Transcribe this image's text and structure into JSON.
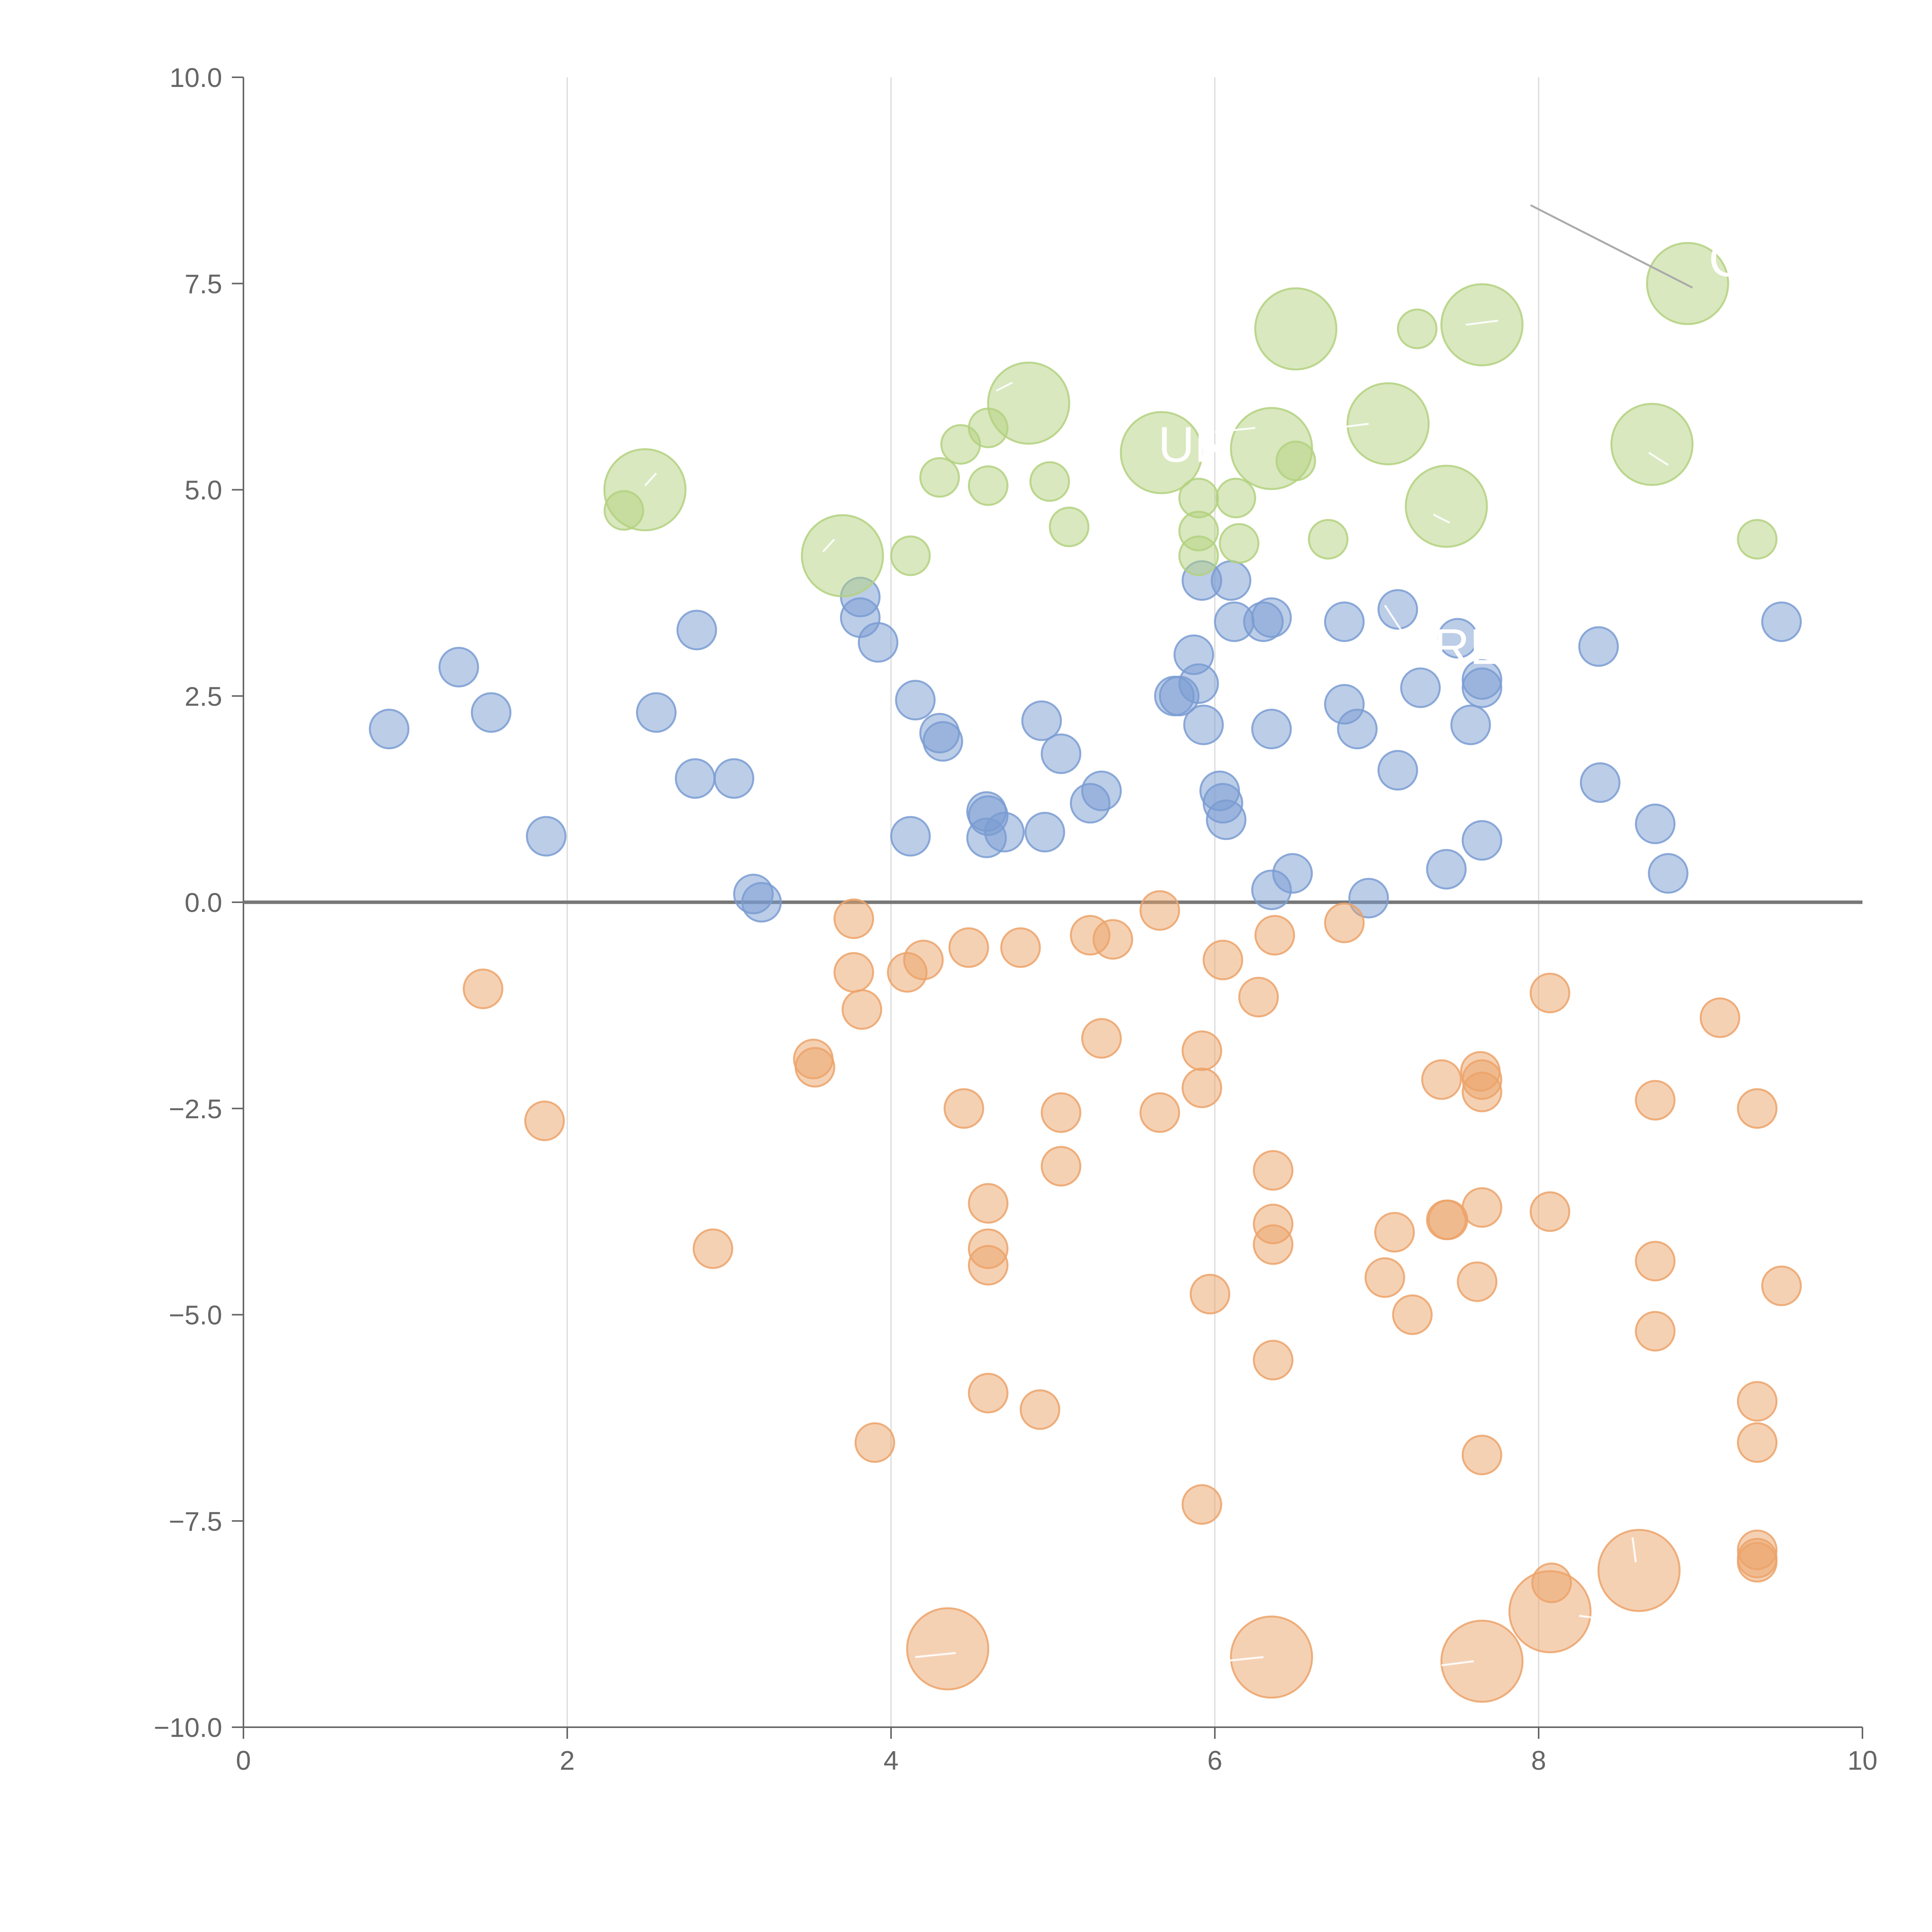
{
  "chart_data": {
    "type": "scatter",
    "title": "",
    "xlabel": "",
    "ylabel": "",
    "xlim": [
      0,
      10
    ],
    "ylim": [
      -10,
      10
    ],
    "grid": "vertical",
    "legend": "none",
    "x_ticks": [
      0,
      2,
      4,
      6,
      8,
      10
    ],
    "x_tick_labels": [
      "0",
      "2",
      "4",
      "6",
      "8",
      "10"
    ],
    "y_ticks": [
      10,
      7.5,
      5,
      2.5,
      0,
      -2.5,
      -5,
      -7.5,
      -10
    ],
    "y_tick_labels": [
      "10.0",
      "7.5",
      "5.0",
      "2.5",
      "0.0",
      "−2.5",
      "−5.0",
      "−7.5",
      "−10.0"
    ],
    "colors": {
      "blue": "#7a9cd2",
      "orange": "#eca36a",
      "green": "#b3d17f",
      "axis": "#666666",
      "grid": "#d9d9d9",
      "zero": "#777777"
    },
    "annotations": [
      {
        "text": "UN",
        "x": 5.65,
        "y": 5.55
      },
      {
        "text": "CI",
        "x": 9.05,
        "y": 7.8
      },
      {
        "text": "RE",
        "x": 7.35,
        "y": 3.1
      }
    ],
    "leader": {
      "x1": 7.95,
      "y1": 8.45,
      "x2": 8.95,
      "y2": 7.45
    },
    "series": [
      {
        "name": "blue",
        "color": "#7a9cd2",
        "points": [
          [
            0.9,
            2.1,
            1
          ],
          [
            1.33,
            2.85,
            1
          ],
          [
            1.53,
            2.3,
            1
          ],
          [
            1.87,
            0.8,
            1
          ],
          [
            2.55,
            2.3,
            1
          ],
          [
            2.8,
            3.3,
            1
          ],
          [
            2.79,
            1.5,
            1
          ],
          [
            3.03,
            1.5,
            1
          ],
          [
            3.15,
            0.1,
            1
          ],
          [
            3.2,
            0.0,
            1
          ],
          [
            3.81,
            3.7,
            1
          ],
          [
            3.81,
            3.45,
            1
          ],
          [
            3.92,
            3.15,
            1
          ],
          [
            4.15,
            2.45,
            1
          ],
          [
            4.12,
            0.8,
            1
          ],
          [
            4.3,
            2.05,
            1
          ],
          [
            4.32,
            1.95,
            1
          ],
          [
            4.59,
            1.1,
            1
          ],
          [
            4.6,
            1.05,
            1
          ],
          [
            4.59,
            0.78,
            1
          ],
          [
            4.7,
            0.85,
            1
          ],
          [
            4.93,
            2.2,
            1
          ],
          [
            4.95,
            0.85,
            1
          ],
          [
            5.05,
            1.8,
            1
          ],
          [
            5.23,
            1.2,
            1
          ],
          [
            5.3,
            1.35,
            1
          ],
          [
            5.75,
            2.5,
            1
          ],
          [
            5.78,
            2.5,
            1
          ],
          [
            5.87,
            3.0,
            1
          ],
          [
            5.9,
            2.65,
            1
          ],
          [
            5.92,
            3.9,
            1
          ],
          [
            5.93,
            2.15,
            1
          ],
          [
            6.03,
            1.35,
            1
          ],
          [
            6.05,
            1.2,
            1
          ],
          [
            6.07,
            1.0,
            1
          ],
          [
            6.1,
            3.9,
            1
          ],
          [
            6.12,
            3.4,
            1
          ],
          [
            6.3,
            3.4,
            1
          ],
          [
            6.35,
            3.45,
            1
          ],
          [
            6.35,
            2.1,
            1
          ],
          [
            6.35,
            0.15,
            1
          ],
          [
            6.48,
            0.35,
            1
          ],
          [
            6.8,
            3.4,
            1
          ],
          [
            6.8,
            2.4,
            1
          ],
          [
            6.88,
            2.1,
            1
          ],
          [
            6.95,
            0.05,
            1
          ],
          [
            7.13,
            3.55,
            1
          ],
          [
            7.13,
            1.6,
            1
          ],
          [
            7.27,
            2.6,
            1
          ],
          [
            7.43,
            0.4,
            1
          ],
          [
            7.5,
            3.2,
            1
          ],
          [
            7.58,
            2.15,
            1
          ],
          [
            7.65,
            2.7,
            1
          ],
          [
            7.65,
            2.6,
            1
          ],
          [
            7.65,
            0.75,
            1
          ],
          [
            8.37,
            3.1,
            1
          ],
          [
            8.38,
            1.45,
            1
          ],
          [
            8.72,
            0.95,
            1
          ],
          [
            8.8,
            0.35,
            1
          ],
          [
            9.5,
            3.4,
            1
          ]
        ]
      },
      {
        "name": "orange",
        "color": "#eca36a",
        "points": [
          [
            1.48,
            -1.05,
            1
          ],
          [
            1.86,
            -2.65,
            1
          ],
          [
            2.9,
            -4.2,
            1
          ],
          [
            3.52,
            -1.9,
            1
          ],
          [
            3.53,
            -2.0,
            1
          ],
          [
            3.77,
            -0.2,
            1
          ],
          [
            3.77,
            -0.85,
            1
          ],
          [
            3.82,
            -1.3,
            1
          ],
          [
            3.9,
            -6.55,
            1
          ],
          [
            4.1,
            -0.85,
            1
          ],
          [
            4.2,
            -0.7,
            1
          ],
          [
            4.45,
            -2.5,
            1
          ],
          [
            4.48,
            -0.55,
            1
          ],
          [
            4.6,
            -3.65,
            1
          ],
          [
            4.6,
            -4.2,
            1
          ],
          [
            4.6,
            -4.4,
            1
          ],
          [
            4.6,
            -5.95,
            1
          ],
          [
            4.8,
            -0.55,
            1
          ],
          [
            4.92,
            -6.15,
            1
          ],
          [
            5.05,
            -2.55,
            1
          ],
          [
            5.05,
            -3.2,
            1
          ],
          [
            5.23,
            -0.4,
            1
          ],
          [
            5.3,
            -1.65,
            1
          ],
          [
            5.37,
            -0.45,
            1
          ],
          [
            5.66,
            -0.1,
            1
          ],
          [
            5.66,
            -2.55,
            1
          ],
          [
            5.92,
            -1.8,
            1
          ],
          [
            5.92,
            -2.25,
            1
          ],
          [
            5.92,
            -7.3,
            1
          ],
          [
            5.97,
            -4.75,
            1
          ],
          [
            6.05,
            -0.7,
            1
          ],
          [
            6.27,
            -1.15,
            1
          ],
          [
            6.37,
            -0.4,
            1
          ],
          [
            6.36,
            -3.25,
            1
          ],
          [
            6.36,
            -3.9,
            1
          ],
          [
            6.36,
            -4.15,
            1
          ],
          [
            6.36,
            -5.55,
            1
          ],
          [
            6.8,
            -0.25,
            1
          ],
          [
            7.05,
            -4.55,
            1
          ],
          [
            7.11,
            -4.0,
            1
          ],
          [
            7.22,
            -5.0,
            1
          ],
          [
            7.4,
            -2.15,
            1
          ],
          [
            7.43,
            -3.85,
            1
          ],
          [
            7.44,
            -3.85,
            1
          ],
          [
            7.62,
            -4.6,
            1
          ],
          [
            7.64,
            -2.05,
            1
          ],
          [
            7.65,
            -2.15,
            1
          ],
          [
            7.65,
            -2.3,
            1
          ],
          [
            7.65,
            -3.7,
            1
          ],
          [
            7.65,
            -6.7,
            1
          ],
          [
            8.07,
            -1.1,
            1
          ],
          [
            8.07,
            -3.75,
            1
          ],
          [
            8.08,
            -8.25,
            1
          ],
          [
            8.72,
            -2.4,
            1
          ],
          [
            8.72,
            -4.35,
            1
          ],
          [
            8.72,
            -5.2,
            1
          ],
          [
            9.12,
            -1.4,
            1
          ],
          [
            9.35,
            -2.5,
            1
          ],
          [
            9.35,
            -6.05,
            1
          ],
          [
            9.35,
            -6.55,
            1
          ],
          [
            9.35,
            -7.85,
            1
          ],
          [
            9.35,
            -7.95,
            1
          ],
          [
            9.35,
            -8.0,
            1
          ],
          [
            9.5,
            -4.65,
            1
          ],
          [
            4.35,
            -9.05,
            2.1
          ],
          [
            6.35,
            -9.15,
            2.1
          ],
          [
            7.65,
            -9.2,
            2.1
          ],
          [
            8.07,
            -8.6,
            2.1
          ],
          [
            8.62,
            -8.1,
            2.1
          ]
        ]
      },
      {
        "name": "green",
        "color": "#b3d17f",
        "points": [
          [
            2.35,
            4.75,
            1
          ],
          [
            4.12,
            4.2,
            1
          ],
          [
            4.3,
            5.15,
            1
          ],
          [
            4.43,
            5.55,
            1
          ],
          [
            4.6,
            5.75,
            1
          ],
          [
            4.6,
            5.05,
            1
          ],
          [
            4.98,
            5.1,
            1
          ],
          [
            5.1,
            4.55,
            1
          ],
          [
            5.9,
            4.9,
            1
          ],
          [
            5.9,
            4.5,
            1
          ],
          [
            5.9,
            4.2,
            1
          ],
          [
            6.13,
            4.9,
            1
          ],
          [
            6.15,
            4.35,
            1
          ],
          [
            6.5,
            5.35,
            1
          ],
          [
            6.7,
            4.4,
            1
          ],
          [
            7.25,
            6.95,
            1
          ],
          [
            9.35,
            4.4,
            1
          ],
          [
            2.48,
            5.0,
            2.1
          ],
          [
            3.7,
            4.2,
            2.1
          ],
          [
            4.85,
            6.05,
            2.1
          ],
          [
            5.67,
            5.45,
            2.1
          ],
          [
            6.35,
            5.5,
            2.1
          ],
          [
            6.5,
            6.95,
            2.1
          ],
          [
            7.07,
            5.8,
            2.1
          ],
          [
            7.43,
            4.8,
            2.1
          ],
          [
            7.65,
            7.0,
            2.1
          ],
          [
            8.7,
            5.55,
            2.1
          ],
          [
            8.92,
            7.5,
            2.1
          ]
        ]
      }
    ]
  }
}
